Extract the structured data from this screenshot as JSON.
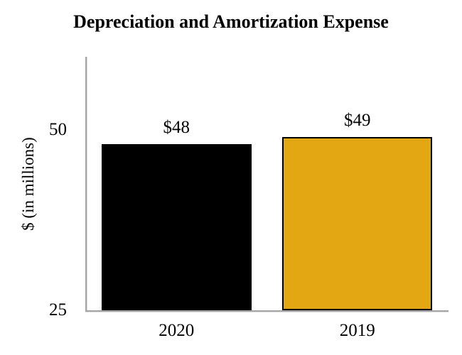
{
  "page": {
    "background": "#FFFFFF"
  },
  "chart_data": {
    "type": "bar",
    "title": "Depreciation and Amortization Expense",
    "ylabel": "$ (in millions)",
    "xlabel": "",
    "categories": [
      "2020",
      "2019"
    ],
    "values": [
      48,
      49
    ],
    "value_labels": [
      "$48",
      "$49"
    ],
    "yticks": [
      25,
      50
    ],
    "ytick_labels": [
      "25",
      "50"
    ],
    "ylim": [
      25,
      60
    ],
    "grid": false,
    "legend": "none",
    "bar_colors": [
      "#000000",
      "#E2A713"
    ],
    "bar_border_color": "#000000",
    "axis_line_color": "#A6A6A6",
    "axis_shadow_color": "#D9D9D9",
    "text_color": "#000000"
  }
}
